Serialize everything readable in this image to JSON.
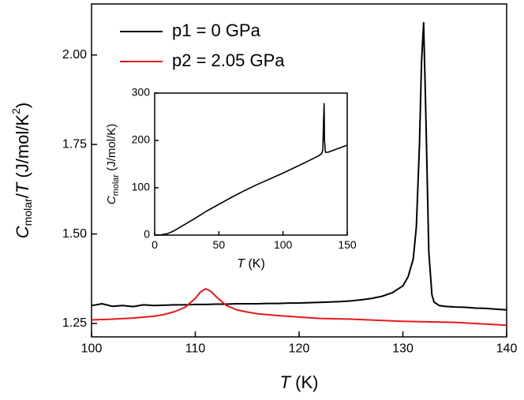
{
  "chart_data": [
    {
      "type": "line",
      "xlabel": [
        "T",
        " (K)"
      ],
      "ylabel": [
        "C",
        "molar",
        "/",
        "T",
        " (J/mol/K",
        "2",
        ")"
      ],
      "xlim": [
        100,
        140
      ],
      "ylim": [
        1.2125,
        2.1425
      ],
      "xticks": [
        100,
        110,
        120,
        130,
        140
      ],
      "yticks": [
        {
          "value": 1.25,
          "label": "1.25"
        },
        {
          "value": 1.5,
          "label": "1.50"
        },
        {
          "value": 1.75,
          "label": "1.75"
        },
        {
          "value": 2.0,
          "label": "2.00"
        }
      ],
      "legend": "upper left",
      "series": [
        {
          "name": "p1 = 0 GPa",
          "color": "#000000",
          "x": [
            100,
            101,
            102,
            103,
            104,
            105,
            106,
            107,
            108,
            109,
            110,
            111,
            112,
            113,
            114,
            115,
            116,
            117,
            118,
            119,
            120,
            121,
            122,
            123,
            124,
            125,
            126,
            127,
            128,
            129,
            130,
            130.5,
            131,
            131.3,
            131.6,
            131.8,
            132,
            132.2,
            132.5,
            132.8,
            133,
            133.5,
            134,
            135,
            136,
            137,
            138,
            139,
            140
          ],
          "values": [
            1.3,
            1.305,
            1.298,
            1.3,
            1.297,
            1.302,
            1.3,
            1.301,
            1.302,
            1.302,
            1.303,
            1.303,
            1.304,
            1.304,
            1.305,
            1.305,
            1.305,
            1.306,
            1.306,
            1.307,
            1.307,
            1.308,
            1.309,
            1.31,
            1.311,
            1.313,
            1.316,
            1.32,
            1.326,
            1.336,
            1.355,
            1.38,
            1.43,
            1.52,
            1.75,
            1.98,
            2.09,
            1.85,
            1.45,
            1.33,
            1.31,
            1.3,
            1.298,
            1.296,
            1.295,
            1.293,
            1.292,
            1.29,
            1.288
          ]
        },
        {
          "name": "p2 = 2.05 GPa",
          "color": "#e41a1c",
          "x": [
            100,
            102,
            104,
            106,
            107,
            108,
            109,
            110,
            110.5,
            111,
            111.5,
            112,
            113,
            114,
            115,
            116,
            118,
            120,
            122,
            125,
            130,
            135,
            140
          ],
          "values": [
            1.26,
            1.262,
            1.265,
            1.27,
            1.275,
            1.283,
            1.295,
            1.32,
            1.338,
            1.347,
            1.34,
            1.325,
            1.3,
            1.288,
            1.282,
            1.277,
            1.272,
            1.268,
            1.264,
            1.262,
            1.256,
            1.253,
            1.245
          ]
        }
      ]
    },
    {
      "type": "line",
      "xlabel": [
        "T",
        " (K)"
      ],
      "ylabel": [
        "C",
        "molar",
        " (J/mol/K)"
      ],
      "xlim": [
        0,
        150
      ],
      "ylim": [
        0,
        300
      ],
      "xticks": [
        0,
        50,
        100,
        150
      ],
      "yticks": [
        0,
        100,
        200,
        300
      ],
      "series": [
        {
          "color": "#000000",
          "x": [
            0,
            5,
            10,
            15,
            20,
            30,
            40,
            50,
            60,
            70,
            80,
            90,
            100,
            110,
            120,
            128,
            130,
            131,
            131.5,
            132,
            132.3,
            133,
            135,
            140,
            145,
            150
          ],
          "values": [
            0,
            0.5,
            3,
            9,
            17,
            33,
            50,
            65,
            80,
            94,
            107,
            119,
            131,
            144,
            157,
            168,
            172,
            180,
            235,
            278,
            200,
            175,
            175,
            180,
            185,
            190
          ]
        }
      ]
    }
  ]
}
